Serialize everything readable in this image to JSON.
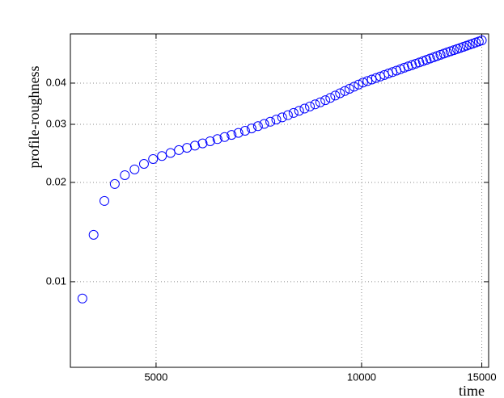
{
  "chart_data": {
    "type": "scatter",
    "x_label": "time",
    "y_label": "profile-roughness",
    "x": [
      3900,
      4050,
      4200,
      4350,
      4500,
      4650,
      4800,
      4950,
      5100,
      5250,
      5400,
      5550,
      5700,
      5850,
      6000,
      6150,
      6300,
      6450,
      6600,
      6750,
      6900,
      7050,
      7200,
      7350,
      7500,
      7650,
      7800,
      7950,
      8100,
      8250,
      8400,
      8550,
      8700,
      8850,
      9000,
      9150,
      9300,
      9450,
      9600,
      9750,
      9900,
      10050,
      10200,
      10350,
      10500,
      10650,
      10800,
      10950,
      11100,
      11250,
      11400,
      11550,
      11700,
      11850,
      12000,
      12150,
      12300,
      12450,
      12600,
      12750,
      12900,
      13050,
      13200,
      13350,
      13500,
      13650,
      13800,
      13950,
      14100,
      14250,
      14400,
      14550,
      14700,
      14850,
      15000
    ],
    "values": [
      0.00889,
      0.01387,
      0.01757,
      0.01978,
      0.02104,
      0.0219,
      0.02276,
      0.02355,
      0.02405,
      0.02456,
      0.02506,
      0.02546,
      0.02586,
      0.02626,
      0.02666,
      0.02706,
      0.02746,
      0.02786,
      0.02826,
      0.02868,
      0.02915,
      0.02962,
      0.03008,
      0.03055,
      0.03102,
      0.03149,
      0.03198,
      0.03248,
      0.03298,
      0.03348,
      0.03398,
      0.03448,
      0.03498,
      0.03551,
      0.03609,
      0.03668,
      0.03727,
      0.03785,
      0.03844,
      0.03902,
      0.03961,
      0.04015,
      0.04058,
      0.04102,
      0.04146,
      0.0419,
      0.04234,
      0.04278,
      0.04321,
      0.04365,
      0.04409,
      0.04453,
      0.04495,
      0.04537,
      0.0458,
      0.04622,
      0.04664,
      0.04706,
      0.04748,
      0.04791,
      0.04833,
      0.04875,
      0.04917,
      0.04958,
      0.04997,
      0.05036,
      0.05075,
      0.05115,
      0.05154,
      0.05193,
      0.05233,
      0.05272,
      0.05311,
      0.05351,
      0.0539
    ],
    "color": "#0000ff",
    "x_log": true,
    "y_log": true,
    "xlim": [
      3745,
      15350
    ],
    "ylim": [
      0.0055,
      0.0564
    ],
    "xticks": [
      5000,
      10000,
      15000
    ],
    "yticks": [
      0.01,
      0.02,
      0.03,
      0.04
    ],
    "grid": true
  }
}
